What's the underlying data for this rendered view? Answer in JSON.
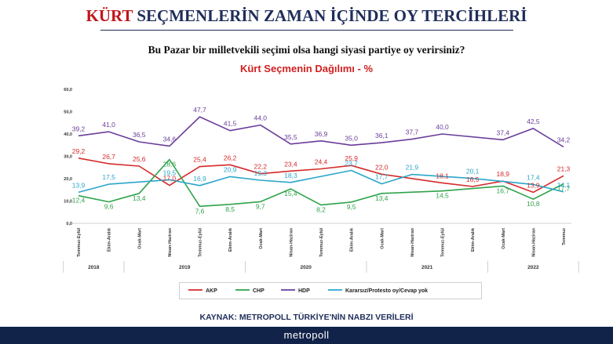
{
  "header": {
    "title_highlight": "KÜRT",
    "title_rest": "SEÇMENLERİN ZAMAN İÇİNDE OY TERCİHLERİ",
    "question": "Bu Pazar bir milletvekili seçimi olsa hangi siyasi partiye oy verirsiniz?",
    "chart_title": "Kürt Seçmenin Dağılımı - %"
  },
  "source": "KAYNAK: METROPOLL TÜRKİYE'NİN NABZI VERİLERİ",
  "brand": "metropoll",
  "chart_data": {
    "type": "line",
    "title": "Kürt Seçmenin Dağılımı - %",
    "x": [
      "Temmuz-Eylül",
      "Ekim-Aralık",
      "Ocak-Mart",
      "Nisan-Haziran",
      "Temmuz-Eylül",
      "Ekim-Aralık",
      "Ocak-Mart",
      "Nisan-Haziran",
      "Temmuz-Eylül",
      "Ekim-Aralık",
      "Ocak-Mart",
      "Nisan-Haziran",
      "Temmuz-Eylül",
      "Ekim-Aralık",
      "Ocak-Mart",
      "Nisan-Haziran",
      "Temmuz"
    ],
    "years": [
      {
        "label": "2018",
        "start": 0,
        "end": 1
      },
      {
        "label": "2019",
        "start": 2,
        "end": 5
      },
      {
        "label": "2020",
        "start": 6,
        "end": 9
      },
      {
        "label": "2021",
        "start": 10,
        "end": 13
      },
      {
        "label": "2022",
        "start": 14,
        "end": 16
      }
    ],
    "ylim": [
      0,
      60
    ],
    "yticks": [
      "0,0",
      "10,0",
      "20,0",
      "30,0",
      "40,0",
      "50,0",
      "60,0"
    ],
    "grid": false,
    "legend_position": "bottom",
    "series": [
      {
        "name": "AKP",
        "color": "#d42a2a",
        "values": [
          29.2,
          26.7,
          25.6,
          17.0,
          25.4,
          26.2,
          22.2,
          23.4,
          24.4,
          25.9,
          22.0,
          null,
          18.1,
          16.5,
          18.9,
          13.9,
          21.3
        ],
        "labels": [
          "29,2",
          "26,7",
          "25,6",
          "17,0",
          "25,4",
          "26,2",
          "22,2",
          "23,4",
          "24,4",
          "25,9",
          "22,0",
          null,
          "18,1",
          "16,5",
          "18,9",
          "13,9",
          "21,3"
        ]
      },
      {
        "name": "CHP",
        "color": "#2ea34a",
        "values": [
          12.4,
          9.6,
          13.4,
          28.6,
          7.6,
          8.5,
          9.7,
          15.4,
          8.2,
          9.5,
          13.4,
          null,
          14.5,
          null,
          16.7,
          10.8,
          17.7
        ],
        "labels": [
          "12,4",
          "9,6",
          "13,4",
          "28,6",
          "7,6",
          "8,5",
          "9,7",
          "15,4",
          "8,2",
          "9,5",
          "13,4",
          null,
          "14,5",
          null,
          "16,7",
          "10,8",
          "17,7"
        ]
      },
      {
        "name": "HDP",
        "color": "#6a3d9a",
        "values": [
          39.2,
          41.0,
          36.5,
          34.6,
          47.7,
          41.5,
          44.0,
          35.5,
          36.9,
          35.0,
          36.1,
          37.7,
          40.0,
          null,
          37.4,
          42.5,
          34.2
        ],
        "labels": [
          "39,2",
          "41,0",
          "36,5",
          "34,6",
          "47,7",
          "41,5",
          "44,0",
          "35,5",
          "36,9",
          "35,0",
          "36,1",
          "37,7",
          "40,0",
          null,
          "37,4",
          "42,5",
          "34,2"
        ]
      },
      {
        "name": "Kararsız/Protesto oy/Cevap yok",
        "color": "#2aa6c9",
        "values": [
          13.9,
          17.5,
          null,
          19.5,
          16.9,
          20.9,
          19.3,
          18.3,
          null,
          23.7,
          17.7,
          21.9,
          null,
          20.1,
          null,
          17.4,
          14.1
        ],
        "labels": [
          "13,9",
          "17,5",
          null,
          "19,5",
          "16,9",
          "20,9",
          "19,3",
          "18,3",
          null,
          "23,7",
          "17,7",
          "21,9",
          null,
          "20,1",
          null,
          "17,4",
          "14,1"
        ]
      }
    ]
  }
}
